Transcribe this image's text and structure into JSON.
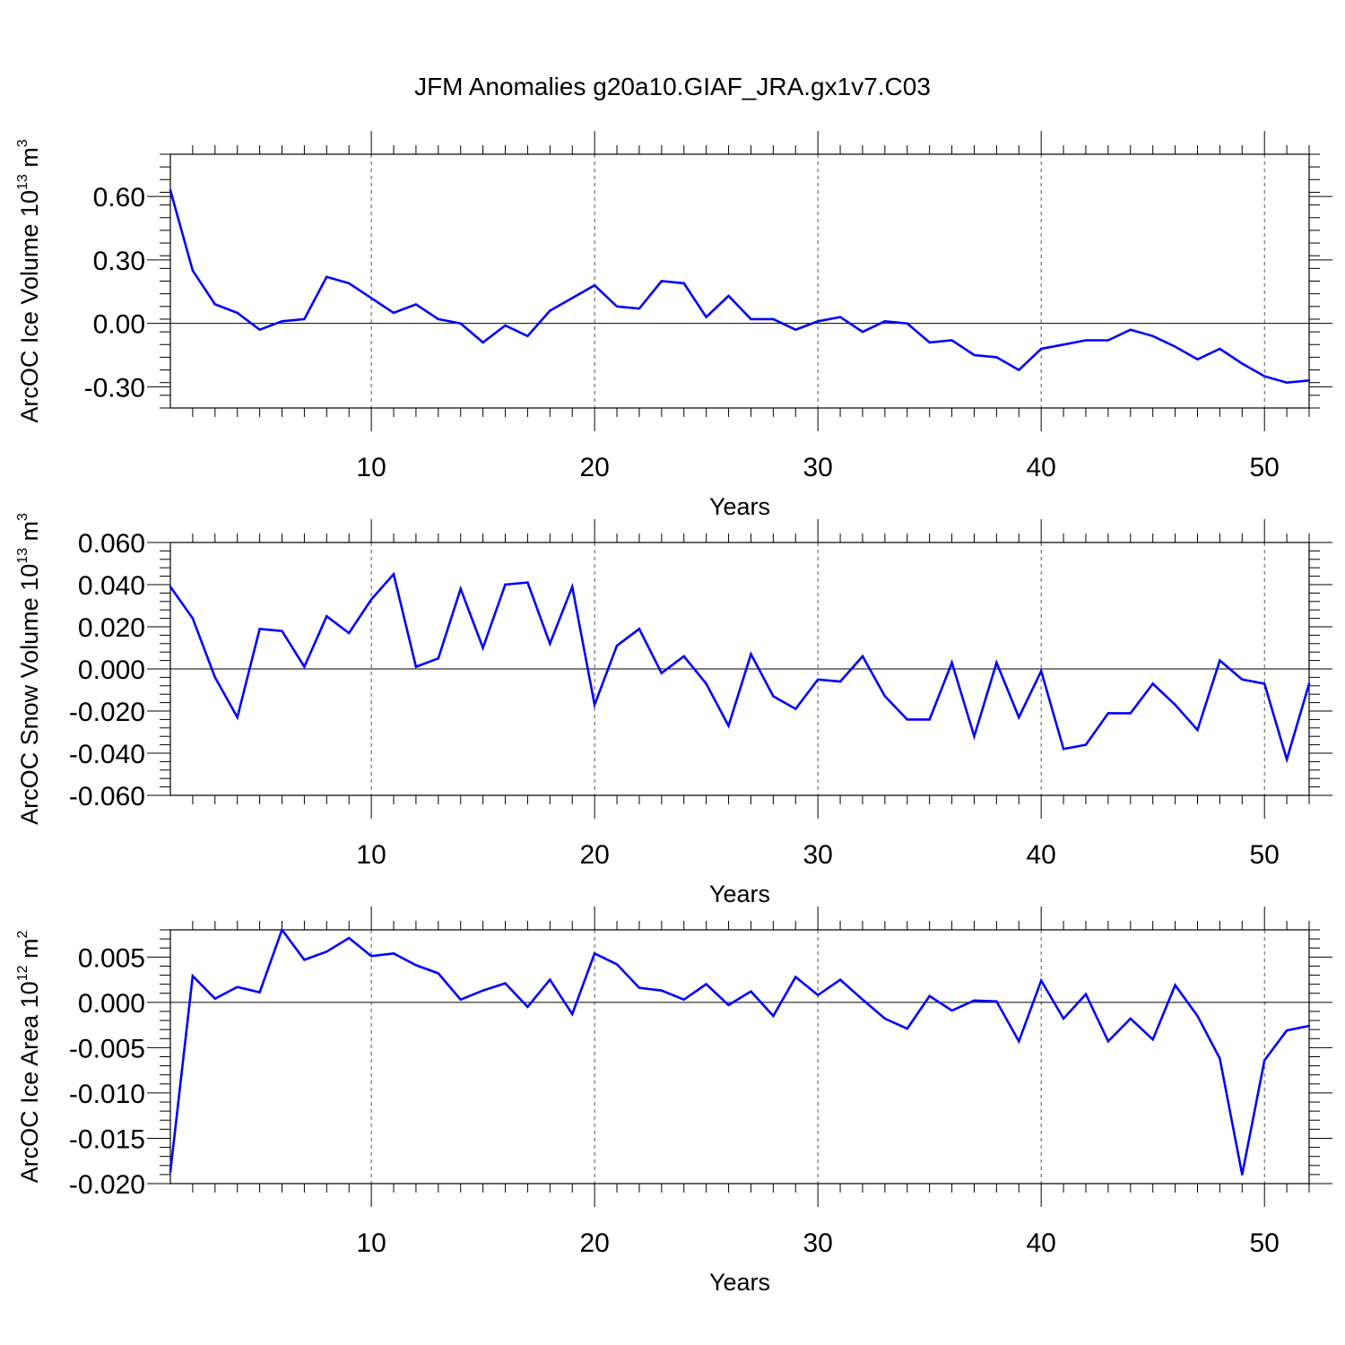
{
  "title": "JFM Anomalies g20a10.GIAF_JRA.gx1v7.C03",
  "line_color": "#0000ff",
  "chart_data": [
    {
      "type": "line",
      "ylabel": {
        "main": "ArcOC Ice Volume 10",
        "exp": "13",
        "unit": " m",
        "unit_exp": "3"
      },
      "xlabel": "Years",
      "xlim": [
        1,
        52
      ],
      "ylim": [
        -0.4,
        0.8
      ],
      "yticks": [
        -0.3,
        0.0,
        0.3,
        0.6
      ],
      "ytick_labels": [
        "-0.30",
        "0.00",
        "0.30",
        "0.60"
      ],
      "xticks": [
        10,
        20,
        30,
        40,
        50
      ],
      "xtick_labels": [
        "10",
        "20",
        "30",
        "40",
        "50"
      ],
      "x": [
        1,
        2,
        3,
        4,
        5,
        6,
        7,
        8,
        9,
        10,
        11,
        12,
        13,
        14,
        15,
        16,
        17,
        18,
        19,
        20,
        21,
        22,
        23,
        24,
        25,
        26,
        27,
        28,
        29,
        30,
        31,
        32,
        33,
        34,
        35,
        36,
        37,
        38,
        39,
        40,
        41,
        42,
        43,
        44,
        45,
        46,
        47,
        48,
        49,
        50,
        51,
        52
      ],
      "values": [
        0.63,
        0.25,
        0.09,
        0.05,
        -0.03,
        0.01,
        0.02,
        0.22,
        0.19,
        0.12,
        0.05,
        0.09,
        0.02,
        0.0,
        -0.09,
        -0.01,
        -0.06,
        0.06,
        0.12,
        0.18,
        0.08,
        0.07,
        0.2,
        0.19,
        0.03,
        0.13,
        0.02,
        0.02,
        -0.03,
        0.01,
        0.03,
        -0.04,
        0.01,
        0.0,
        -0.09,
        -0.08,
        -0.15,
        -0.16,
        -0.22,
        -0.12,
        -0.1,
        -0.08,
        -0.08,
        -0.03,
        -0.06,
        -0.11,
        -0.17,
        -0.12,
        -0.19,
        -0.25,
        -0.28,
        -0.27
      ]
    },
    {
      "type": "line",
      "ylabel": {
        "main": "ArcOC Snow Volume 10",
        "exp": "13",
        "unit": " m",
        "unit_exp": "3"
      },
      "xlabel": "Years",
      "xlim": [
        1,
        52
      ],
      "ylim": [
        -0.06,
        0.06
      ],
      "yticks": [
        -0.06,
        -0.04,
        -0.02,
        0.0,
        0.02,
        0.04,
        0.06
      ],
      "ytick_labels": [
        "-0.060",
        "-0.040",
        "-0.020",
        "0.000",
        "0.020",
        "0.040",
        "0.060"
      ],
      "xticks": [
        10,
        20,
        30,
        40,
        50
      ],
      "xtick_labels": [
        "10",
        "20",
        "30",
        "40",
        "50"
      ],
      "x": [
        1,
        2,
        3,
        4,
        5,
        6,
        7,
        8,
        9,
        10,
        11,
        12,
        13,
        14,
        15,
        16,
        17,
        18,
        19,
        20,
        21,
        22,
        23,
        24,
        25,
        26,
        27,
        28,
        29,
        30,
        31,
        32,
        33,
        34,
        35,
        36,
        37,
        38,
        39,
        40,
        41,
        42,
        43,
        44,
        45,
        46,
        47,
        48,
        49,
        50,
        51,
        52
      ],
      "values": [
        0.039,
        0.024,
        -0.004,
        -0.023,
        0.019,
        0.018,
        0.001,
        0.025,
        0.017,
        0.033,
        0.045,
        0.001,
        0.005,
        0.038,
        0.01,
        0.04,
        0.041,
        0.012,
        0.039,
        -0.017,
        0.011,
        0.019,
        -0.002,
        0.006,
        -0.007,
        -0.027,
        0.007,
        -0.013,
        -0.019,
        -0.005,
        -0.006,
        0.006,
        -0.013,
        -0.024,
        -0.024,
        0.003,
        -0.032,
        0.003,
        -0.023,
        -0.001,
        -0.038,
        -0.036,
        -0.021,
        -0.021,
        -0.007,
        -0.017,
        -0.029,
        0.004,
        -0.005,
        -0.007,
        -0.043,
        -0.007
      ]
    },
    {
      "type": "line",
      "ylabel": {
        "main": "ArcOC Ice Area 10",
        "exp": "12",
        "unit": " m",
        "unit_exp": "2"
      },
      "xlabel": "Years",
      "xlim": [
        1,
        52
      ],
      "ylim": [
        -0.02,
        0.008
      ],
      "yticks": [
        -0.02,
        -0.015,
        -0.01,
        -0.005,
        0.0,
        0.005
      ],
      "ytick_labels": [
        "-0.020",
        "-0.015",
        "-0.010",
        "-0.005",
        "0.000",
        "0.005"
      ],
      "xticks": [
        10,
        20,
        30,
        40,
        50
      ],
      "xtick_labels": [
        "10",
        "20",
        "30",
        "40",
        "50"
      ],
      "x": [
        1,
        2,
        3,
        4,
        5,
        6,
        7,
        8,
        9,
        10,
        11,
        12,
        13,
        14,
        15,
        16,
        17,
        18,
        19,
        20,
        21,
        22,
        23,
        24,
        25,
        26,
        27,
        28,
        29,
        30,
        31,
        32,
        33,
        34,
        35,
        36,
        37,
        38,
        39,
        40,
        41,
        42,
        43,
        44,
        45,
        46,
        47,
        48,
        49,
        50,
        51,
        52
      ],
      "values": [
        -0.0187,
        0.0029,
        0.0004,
        0.0017,
        0.0011,
        0.008,
        0.0047,
        0.0056,
        0.0071,
        0.0051,
        0.0054,
        0.0041,
        0.0032,
        0.0003,
        0.0013,
        0.0021,
        -0.0005,
        0.0025,
        -0.0013,
        0.0054,
        0.0042,
        0.0016,
        0.0013,
        0.0003,
        0.002,
        -0.0003,
        0.0012,
        -0.0015,
        0.0028,
        0.0008,
        0.0025,
        0.0003,
        -0.0018,
        -0.0029,
        0.0007,
        -0.0009,
        0.0002,
        0.0001,
        -0.0043,
        0.0024,
        -0.0018,
        0.0009,
        -0.0043,
        -0.0018,
        -0.0041,
        0.0019,
        -0.0015,
        -0.0062,
        -0.019,
        -0.0064,
        -0.0031,
        -0.0026
      ]
    }
  ]
}
